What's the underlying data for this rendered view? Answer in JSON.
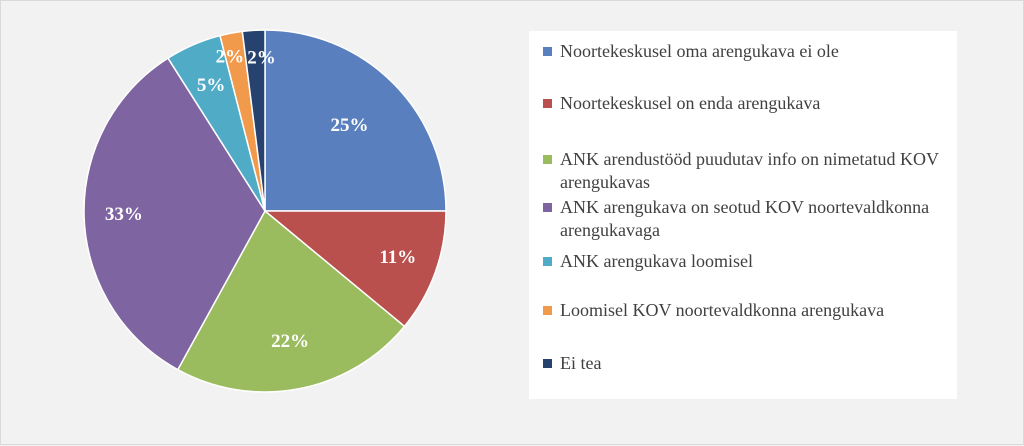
{
  "chart_data": {
    "type": "pie",
    "title": "",
    "start_angle_deg": 0,
    "direction": "clockwise",
    "legend_position": "right",
    "slices": [
      {
        "label": "Noortekeskusel oma arengukava ei ole",
        "value": 25,
        "display": "25%",
        "color": "#5a7fbf"
      },
      {
        "label": "Noortekeskusel on enda arengukava",
        "value": 11,
        "display": "11%",
        "color": "#b9504d"
      },
      {
        "label": "ANK arendustööd puudutav info on nimetatud KOV arengukavas",
        "value": 22,
        "display": "22%",
        "color": "#9bbb5f"
      },
      {
        "label": "ANK arengukava on seotud KOV noortevaldkonna arengukavaga",
        "value": 33,
        "display": "33%",
        "color": "#7e64a0"
      },
      {
        "label": "ANK arengukava loomisel",
        "value": 5,
        "display": "5%",
        "color": "#4fabc6"
      },
      {
        "label": "Loomisel KOV noortevaldkonna arengukava",
        "value": 2,
        "display": "2%",
        "color": "#f29a4b"
      },
      {
        "label": "Ei tea",
        "value": 2,
        "display": "2%",
        "color": "#27426f"
      }
    ]
  }
}
